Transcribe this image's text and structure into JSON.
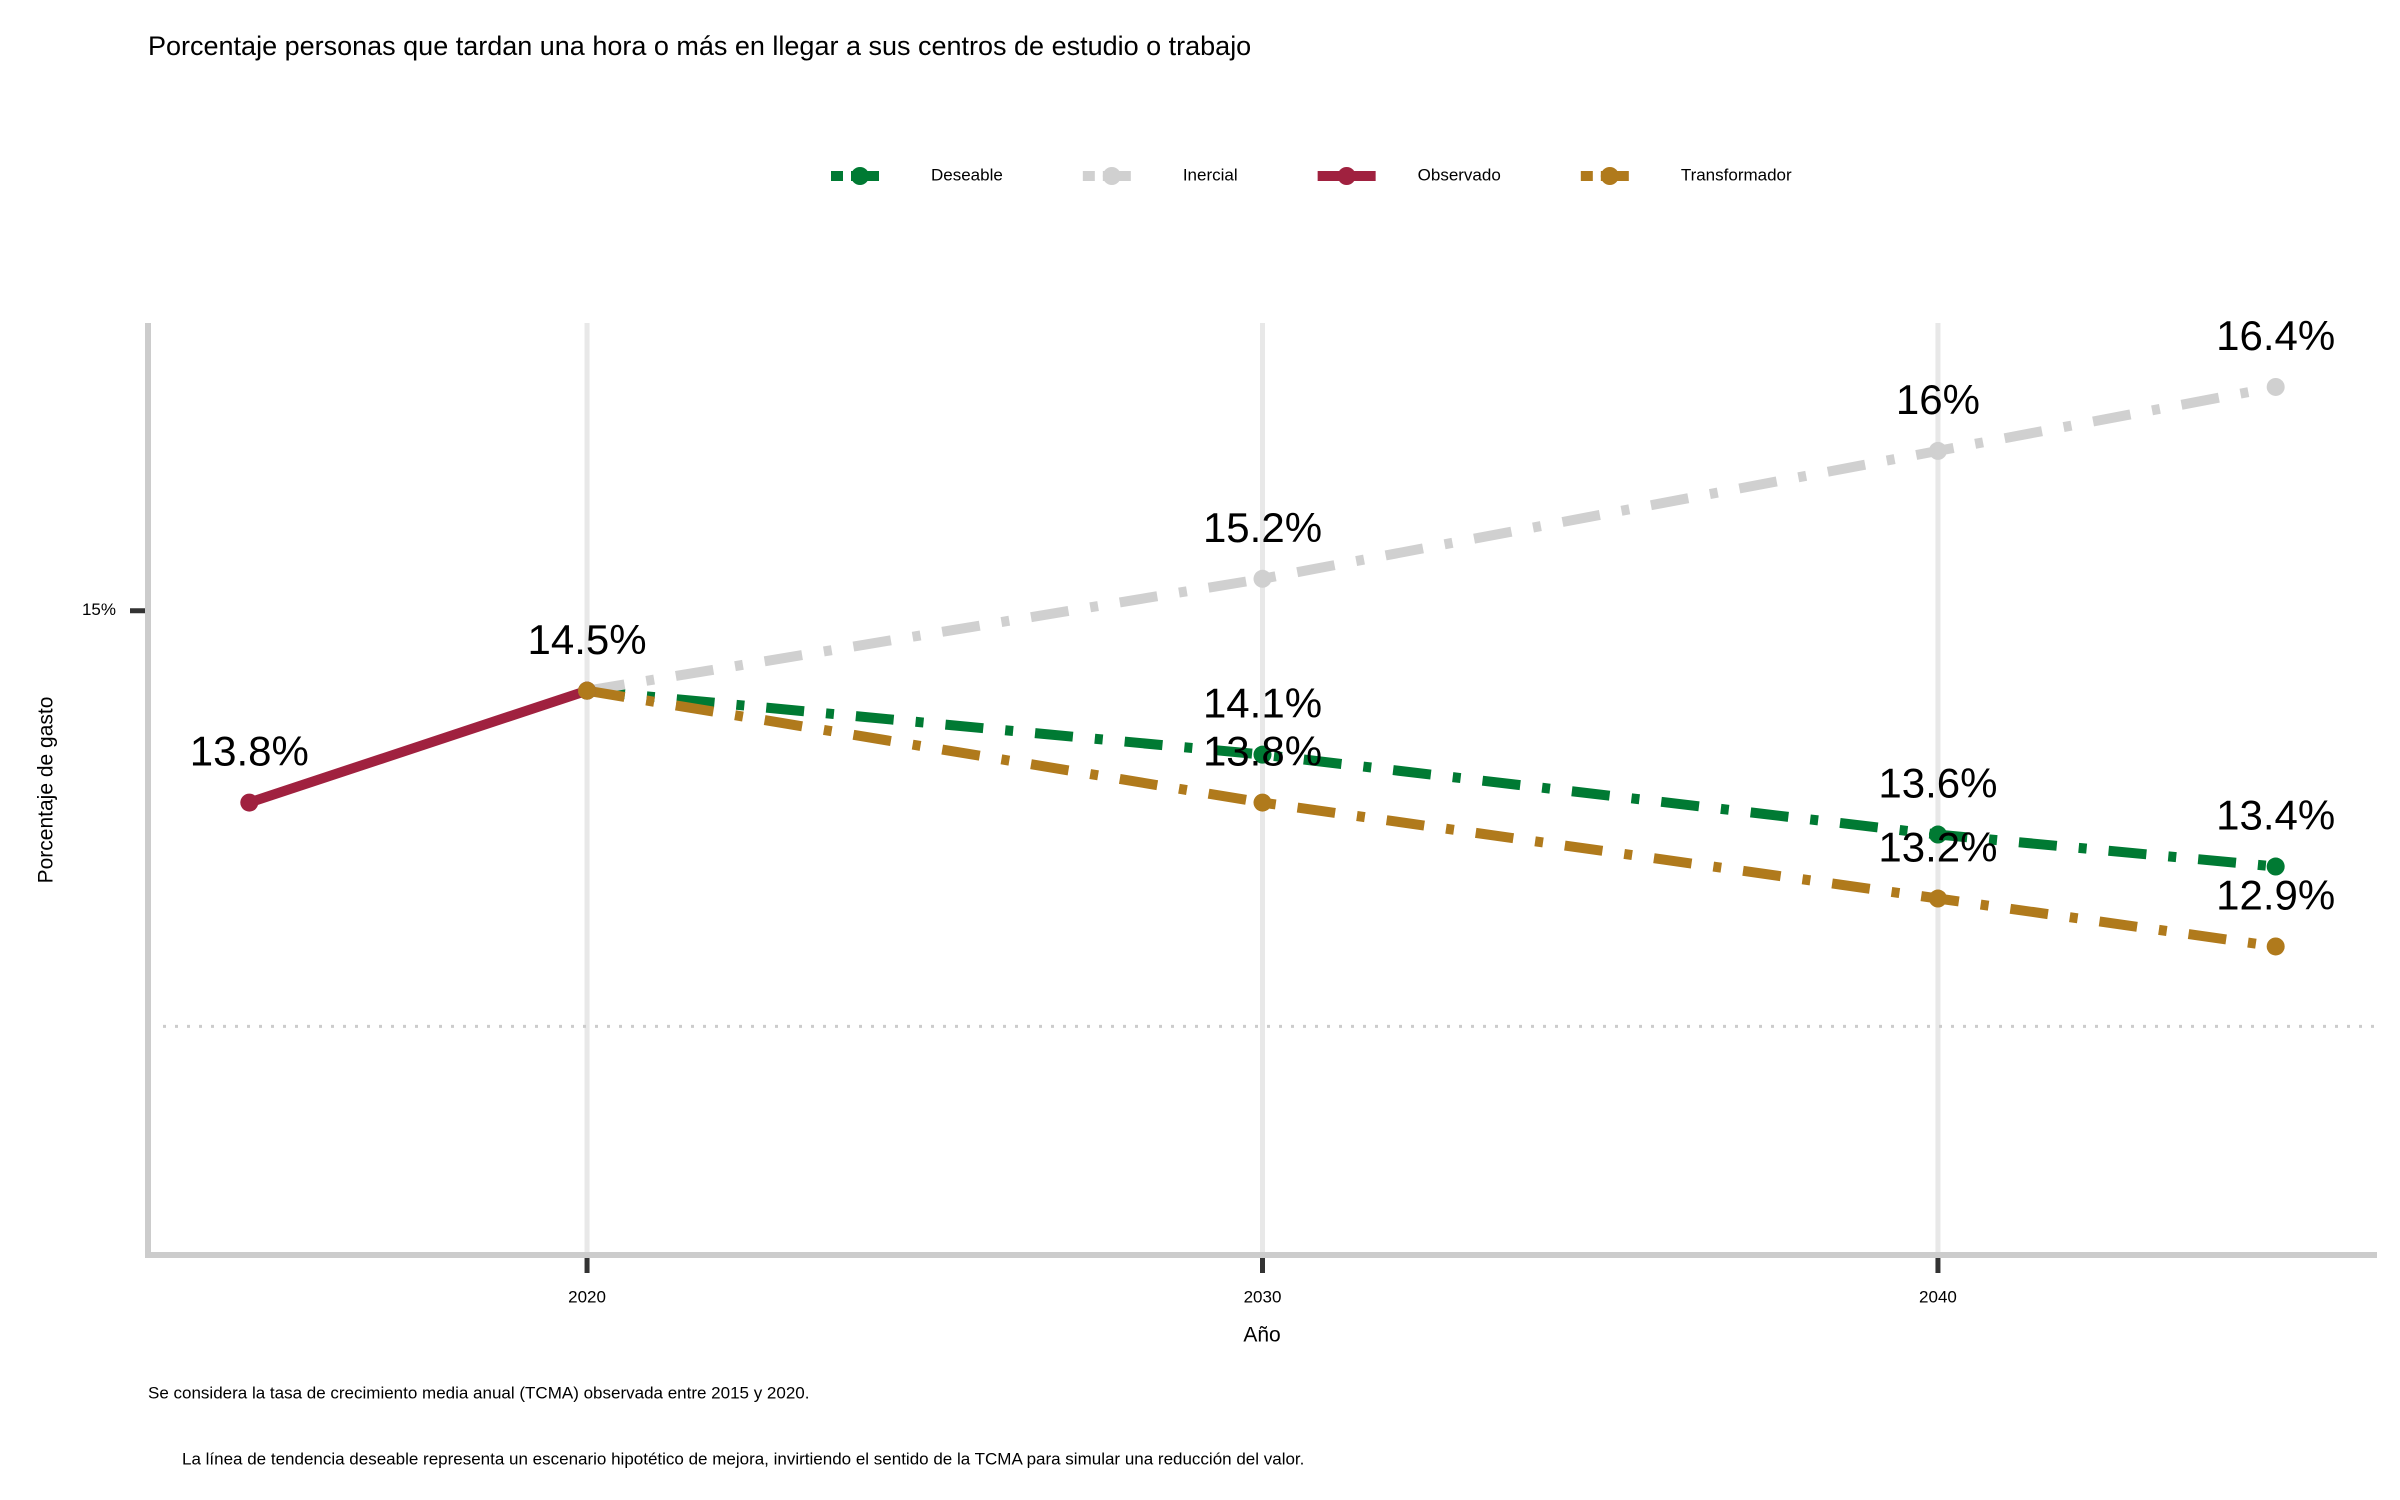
{
  "chart_data": {
    "type": "line",
    "title": "Porcentaje personas que tardan una hora o más en llegar a sus centros de estudio o trabajo",
    "x_label": "Año",
    "y_label": "Porcentaje de gasto",
    "notes": [
      "Se considera la tasa de crecimiento media anual (TCMA) observada entre 2015 y 2020.",
      "La línea de tendencia deseable representa un escenario hipotético de mejora, invirtiendo el sentido de la TCMA para simular una reducción del valor."
    ],
    "x": [
      2015,
      2020,
      2030,
      2040,
      2045
    ],
    "series": [
      {
        "name": "Deseable",
        "color": "#007a33",
        "dashed": true,
        "values": [
          null,
          14.5,
          14.1,
          13.6,
          13.4
        ],
        "value_labels": [
          null,
          null,
          "14.1%",
          "13.6%",
          "13.4%"
        ]
      },
      {
        "name": "Inercial",
        "color": "#d0d0d0",
        "dashed": true,
        "values": [
          null,
          14.5,
          15.2,
          16,
          16.4
        ],
        "value_labels": [
          null,
          null,
          "15.2%",
          "16%",
          "16.4%"
        ]
      },
      {
        "name": "Observado",
        "color": "#a0213f",
        "dashed": false,
        "values": [
          13.8,
          14.5,
          null,
          null,
          null
        ],
        "value_labels": [
          "13.8%",
          "14.5%",
          null,
          null,
          null
        ]
      },
      {
        "name": "Transformador",
        "color": "#b07a1c",
        "dashed": true,
        "values": [
          null,
          14.5,
          13.8,
          13.2,
          12.9
        ],
        "value_labels": [
          null,
          null,
          "13.8%",
          "13.2%",
          "12.9%"
        ]
      }
    ],
    "xlim": [
      2013.5,
      2046.5
    ],
    "ylim": [
      10.97,
      16.8
    ],
    "xticks": [
      2020,
      2030,
      2040
    ],
    "yticks": [
      {
        "value": 15,
        "label": "15%"
      }
    ],
    "reference_line": 12.4,
    "grid": true,
    "legend": "top"
  }
}
